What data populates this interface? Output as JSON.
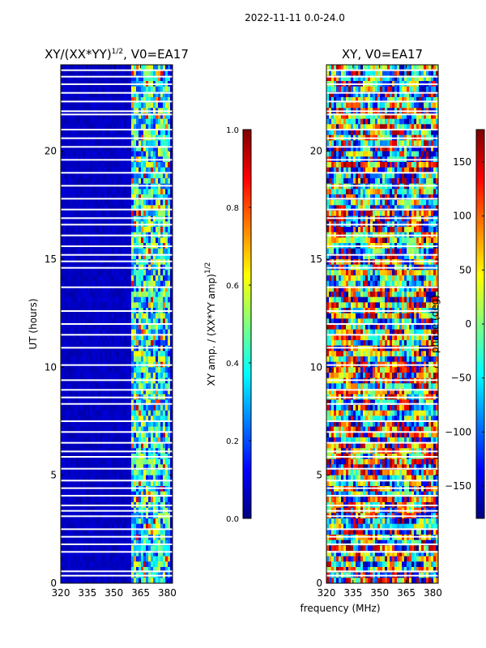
{
  "suptitle": "2022-11-11 0.0-24.0",
  "chart_data": [
    {
      "type": "heatmap",
      "title": "XY/(XX*YY)",
      "title_superscript": "1/2",
      "title_suffix": ", V0=EA17",
      "xlabel": "",
      "ylabel": "UT (hours)",
      "xlim": [
        320,
        383
      ],
      "ylim": [
        0,
        24
      ],
      "x_ticks": [
        "320",
        "335",
        "350",
        "365",
        "380"
      ],
      "x_tick_values": [
        320,
        335,
        350,
        365,
        380
      ],
      "y_ticks": [
        "0",
        "5",
        "10",
        "15",
        "20"
      ],
      "y_tick_values": [
        0,
        5,
        10,
        15,
        20
      ],
      "colormap": "jet",
      "active_band_mhz": [
        360,
        381
      ],
      "colorbar": {
        "label": "XY amp. / (XX*YY amp)",
        "label_superscript": "1/2",
        "range": [
          0.0,
          1.0
        ],
        "ticks": [
          "0.0",
          "0.2",
          "0.4",
          "0.6",
          "0.8",
          "1.0"
        ],
        "tick_values": [
          0.0,
          0.2,
          0.4,
          0.6,
          0.8,
          1.0
        ]
      }
    },
    {
      "type": "heatmap",
      "title": "XY, V0=EA17",
      "xlabel": "frequency (MHz)",
      "ylabel": "",
      "xlim": [
        320,
        383
      ],
      "ylim": [
        0,
        24
      ],
      "x_ticks": [
        "320",
        "335",
        "350",
        "365",
        "380"
      ],
      "x_tick_values": [
        320,
        335,
        350,
        365,
        380
      ],
      "y_ticks": [
        "0",
        "5",
        "10",
        "15",
        "20"
      ],
      "y_tick_values": [
        0,
        5,
        10,
        15,
        20
      ],
      "colormap": "jet",
      "colorbar": {
        "label": "phase (deg)",
        "range": [
          -180,
          180
        ],
        "ticks": [
          "−150",
          "−100",
          "−50",
          "0",
          "50",
          "100",
          "150"
        ],
        "tick_values": [
          -150,
          -100,
          -50,
          0,
          50,
          100,
          150
        ]
      }
    }
  ],
  "flagged_hours": [
    0.35,
    0.55,
    1.45,
    1.8,
    2.15,
    2.5,
    3.1,
    3.35,
    3.6,
    4.05,
    4.4,
    4.75,
    5.3,
    5.85,
    6.1,
    6.5,
    7.0,
    7.5,
    8.3,
    8.6,
    8.95,
    9.4,
    10.1,
    10.9,
    11.5,
    12.0,
    12.6,
    13.7,
    14.6,
    14.9,
    15.2,
    15.6,
    16.1,
    16.6,
    16.9,
    17.3,
    17.8,
    18.4,
    19.0,
    19.6,
    20.2,
    20.6,
    21.0,
    21.7,
    21.85,
    22.3,
    22.7,
    23.1,
    23.45,
    23.75
  ]
}
